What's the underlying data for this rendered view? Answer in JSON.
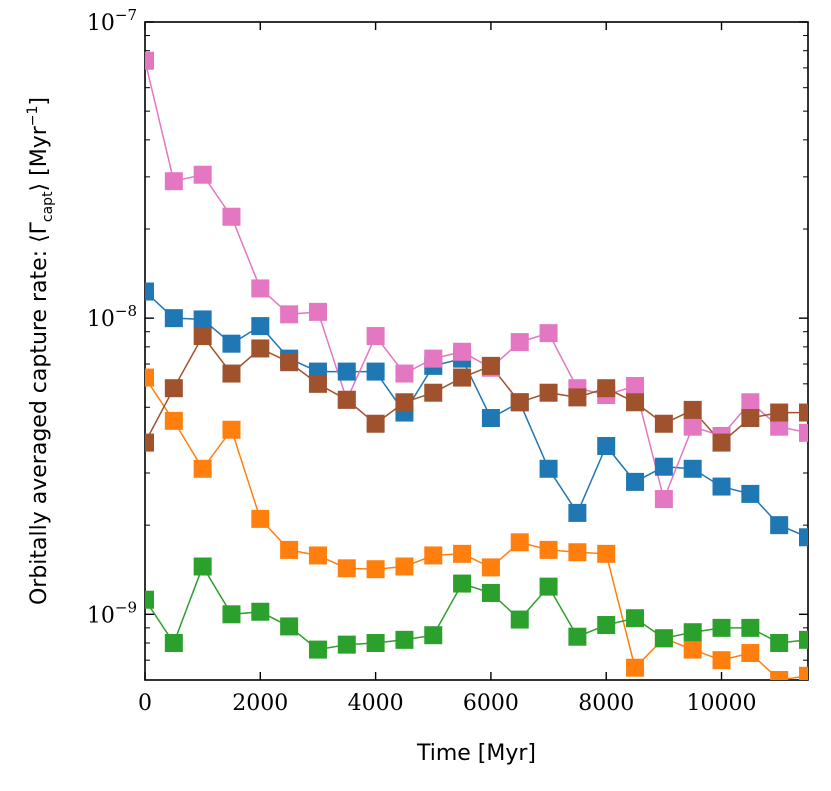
{
  "chart_data": {
    "type": "line",
    "xlabel": "Time [Myr]",
    "ylabel_parts": {
      "prefix": "Orbitally averaged capture rate: ⟨Γ",
      "subscript": "capt",
      "middle": "⟩ [Myr",
      "superscript": "−1",
      "suffix": "]"
    },
    "y_scale": "log",
    "xlim": [
      0,
      11500
    ],
    "ylim": [
      6e-10,
      1e-07
    ],
    "x_ticks": [
      0,
      2000,
      4000,
      6000,
      8000,
      10000
    ],
    "x_tick_labels": [
      "0",
      "2000",
      "4000",
      "6000",
      "8000",
      "10000"
    ],
    "y_ticks": [
      {
        "value": 1e-09,
        "base": "10",
        "exp": "−9"
      },
      {
        "value": 1e-08,
        "base": "10",
        "exp": "−8"
      },
      {
        "value": 1e-07,
        "base": "10",
        "exp": "−7"
      }
    ],
    "grid": false,
    "marker": "square",
    "x": [
      0,
      500,
      1000,
      1500,
      2000,
      2500,
      3000,
      3500,
      4000,
      4500,
      5000,
      5500,
      6000,
      6500,
      7000,
      7500,
      8000,
      8500,
      9000,
      9500,
      10000,
      10500,
      11000,
      11500
    ],
    "series": [
      {
        "color": "#1f77b4",
        "values": [
          1.23e-08,
          1e-08,
          9.9e-09,
          8.2e-09,
          9.4e-09,
          7.3e-09,
          6.6e-09,
          6.6e-09,
          6.6e-09,
          4.8e-09,
          6.9e-09,
          7.3e-09,
          4.6e-09,
          5.2e-09,
          3.1e-09,
          2.2e-09,
          3.7e-09,
          2.8e-09,
          3.15e-09,
          3.1e-09,
          2.7e-09,
          2.55e-09,
          2e-09,
          1.82e-09
        ]
      },
      {
        "color": "#ff7f0e",
        "values": [
          6.3e-09,
          4.5e-09,
          3.1e-09,
          4.2e-09,
          2.1e-09,
          1.65e-09,
          1.58e-09,
          1.43e-09,
          1.42e-09,
          1.45e-09,
          1.58e-09,
          1.6e-09,
          1.44e-09,
          1.75e-09,
          1.65e-09,
          1.62e-09,
          1.6e-09,
          6.6e-10,
          8.3e-10,
          7.6e-10,
          7e-10,
          7.4e-10,
          6e-10,
          6.2e-10
        ]
      },
      {
        "color": "#2ca02c",
        "values": [
          1.12e-09,
          8e-10,
          1.45e-09,
          1e-09,
          1.02e-09,
          9.1e-10,
          7.6e-10,
          7.9e-10,
          8e-10,
          8.2e-10,
          8.5e-10,
          1.27e-09,
          1.18e-09,
          9.6e-10,
          1.24e-09,
          8.4e-10,
          9.2e-10,
          9.7e-10,
          8.3e-10,
          8.7e-10,
          9e-10,
          9e-10,
          8e-10,
          8.2e-10
        ]
      },
      {
        "color": "#e377c2",
        "values": [
          7.4e-08,
          2.9e-08,
          3.05e-08,
          2.2e-08,
          1.26e-08,
          1.03e-08,
          1.05e-08,
          5.3e-09,
          8.7e-09,
          6.5e-09,
          7.3e-09,
          7.7e-09,
          6.8e-09,
          8.3e-09,
          8.9e-09,
          5.8e-09,
          5.5e-09,
          5.9e-09,
          2.45e-09,
          4.3e-09,
          4e-09,
          5.2e-09,
          4.3e-09,
          4.1e-09
        ]
      },
      {
        "color": "#a0522d",
        "values": [
          3.8e-09,
          5.8e-09,
          8.7e-09,
          6.5e-09,
          7.9e-09,
          7.1e-09,
          6e-09,
          5.3e-09,
          4.4e-09,
          5.2e-09,
          5.6e-09,
          6.3e-09,
          6.9e-09,
          5.2e-09,
          5.6e-09,
          5.4e-09,
          5.8e-09,
          5.2e-09,
          4.4e-09,
          4.9e-09,
          3.8e-09,
          4.6e-09,
          4.8e-09,
          4.8e-09
        ]
      }
    ]
  }
}
